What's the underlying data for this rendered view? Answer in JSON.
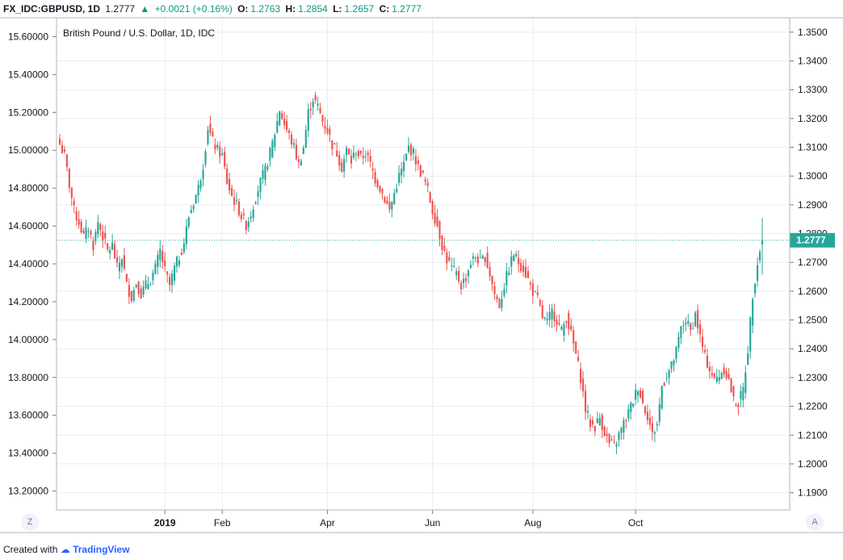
{
  "header": {
    "symbol": "FX_IDC:GBPUSD, 1D",
    "last": "1.2777",
    "change": "+0.0021 (+0.16%)",
    "o_label": "O:",
    "o": "1.2763",
    "h_label": "H:",
    "h": "1.2854",
    "l_label": "L:",
    "l": "1.2657",
    "c_label": "C:",
    "c": "1.2777"
  },
  "footer": {
    "created_with": "Created with",
    "brand": "TradingView"
  },
  "buttons": {
    "left": "Z",
    "right": "A"
  },
  "colors": {
    "up": "#26a69a",
    "down": "#ef5350",
    "price_line": "#26a69a"
  },
  "chart_data": {
    "type": "candlestick",
    "title": "British Pound / U.S. Dollar, 1D, IDC",
    "y_right": {
      "range": [
        1.184,
        1.355
      ],
      "ticks": [
        "1.3500",
        "1.3400",
        "1.3300",
        "1.3200",
        "1.3100",
        "1.3000",
        "1.2900",
        "1.2800",
        "1.2700",
        "1.2600",
        "1.2500",
        "1.2400",
        "1.2300",
        "1.2200",
        "1.2100",
        "1.2000",
        "1.1900"
      ]
    },
    "y_left": {
      "range": [
        13.1,
        15.7
      ],
      "ticks": [
        "15.60000",
        "15.40000",
        "15.20000",
        "15.00000",
        "14.80000",
        "14.60000",
        "14.40000",
        "14.20000",
        "14.00000",
        "13.80000",
        "13.60000",
        "13.40000",
        "13.20000"
      ]
    },
    "x_ticks": [
      "2019",
      "Feb",
      "Apr",
      "Jun",
      "Aug",
      "Oct"
    ],
    "last_price": "1.2777",
    "last_price_value": 1.2777,
    "grid": true,
    "close_path": [
      [
        0,
        1.311
      ],
      [
        2,
        1.307
      ],
      [
        4,
        1.297
      ],
      [
        6,
        1.288
      ],
      [
        8,
        1.284
      ],
      [
        10,
        1.279
      ],
      [
        12,
        1.282
      ],
      [
        14,
        1.276
      ],
      [
        16,
        1.284
      ],
      [
        18,
        1.279
      ],
      [
        20,
        1.274
      ],
      [
        22,
        1.276
      ],
      [
        24,
        1.268
      ],
      [
        26,
        1.272
      ],
      [
        28,
        1.262
      ],
      [
        30,
        1.258
      ],
      [
        32,
        1.263
      ],
      [
        34,
        1.259
      ],
      [
        36,
        1.262
      ],
      [
        38,
        1.264
      ],
      [
        40,
        1.268
      ],
      [
        42,
        1.274
      ],
      [
        44,
        1.267
      ],
      [
        46,
        1.262
      ],
      [
        48,
        1.268
      ],
      [
        50,
        1.272
      ],
      [
        52,
        1.277
      ],
      [
        54,
        1.286
      ],
      [
        56,
        1.291
      ],
      [
        58,
        1.296
      ],
      [
        60,
        1.304
      ],
      [
        62,
        1.317
      ],
      [
        64,
        1.312
      ],
      [
        66,
        1.309
      ],
      [
        68,
        1.307
      ],
      [
        70,
        1.298
      ],
      [
        72,
        1.293
      ],
      [
        74,
        1.29
      ],
      [
        76,
        1.286
      ],
      [
        78,
        1.283
      ],
      [
        80,
        1.287
      ],
      [
        82,
        1.293
      ],
      [
        84,
        1.298
      ],
      [
        86,
        1.302
      ],
      [
        88,
        1.308
      ],
      [
        90,
        1.315
      ],
      [
        92,
        1.323
      ],
      [
        94,
        1.318
      ],
      [
        96,
        1.314
      ],
      [
        98,
        1.31
      ],
      [
        100,
        1.304
      ],
      [
        102,
        1.31
      ],
      [
        104,
        1.322
      ],
      [
        106,
        1.327
      ],
      [
        108,
        1.324
      ],
      [
        110,
        1.319
      ],
      [
        112,
        1.316
      ],
      [
        114,
        1.311
      ],
      [
        116,
        1.308
      ],
      [
        118,
        1.303
      ],
      [
        120,
        1.309
      ],
      [
        122,
        1.305
      ],
      [
        124,
        1.309
      ],
      [
        126,
        1.306
      ],
      [
        128,
        1.308
      ],
      [
        130,
        1.304
      ],
      [
        132,
        1.299
      ],
      [
        134,
        1.296
      ],
      [
        136,
        1.292
      ],
      [
        138,
        1.288
      ],
      [
        140,
        1.294
      ],
      [
        142,
        1.3
      ],
      [
        144,
        1.304
      ],
      [
        146,
        1.31
      ],
      [
        148,
        1.308
      ],
      [
        150,
        1.303
      ],
      [
        152,
        1.3
      ],
      [
        154,
        1.295
      ],
      [
        156,
        1.288
      ],
      [
        158,
        1.283
      ],
      [
        160,
        1.276
      ],
      [
        162,
        1.271
      ],
      [
        164,
        1.268
      ],
      [
        166,
        1.266
      ],
      [
        168,
        1.262
      ],
      [
        170,
        1.265
      ],
      [
        172,
        1.27
      ],
      [
        174,
        1.272
      ],
      [
        176,
        1.27
      ],
      [
        178,
        1.272
      ],
      [
        180,
        1.266
      ],
      [
        182,
        1.259
      ],
      [
        184,
        1.255
      ],
      [
        186,
        1.262
      ],
      [
        188,
        1.268
      ],
      [
        190,
        1.273
      ],
      [
        192,
        1.27
      ],
      [
        194,
        1.268
      ],
      [
        196,
        1.264
      ],
      [
        198,
        1.26
      ],
      [
        200,
        1.257
      ],
      [
        202,
        1.251
      ],
      [
        204,
        1.249
      ],
      [
        206,
        1.253
      ],
      [
        208,
        1.25
      ],
      [
        210,
        1.246
      ],
      [
        212,
        1.251
      ],
      [
        214,
        1.245
      ],
      [
        216,
        1.238
      ],
      [
        218,
        1.23
      ],
      [
        220,
        1.219
      ],
      [
        222,
        1.214
      ],
      [
        224,
        1.213
      ],
      [
        226,
        1.216
      ],
      [
        228,
        1.211
      ],
      [
        230,
        1.207
      ],
      [
        232,
        1.206
      ],
      [
        234,
        1.21
      ],
      [
        236,
        1.214
      ],
      [
        238,
        1.218
      ],
      [
        240,
        1.222
      ],
      [
        242,
        1.227
      ],
      [
        244,
        1.221
      ],
      [
        246,
        1.217
      ],
      [
        248,
        1.21
      ],
      [
        250,
        1.214
      ],
      [
        252,
        1.227
      ],
      [
        254,
        1.231
      ],
      [
        256,
        1.234
      ],
      [
        258,
        1.239
      ],
      [
        260,
        1.247
      ],
      [
        262,
        1.25
      ],
      [
        264,
        1.246
      ],
      [
        266,
        1.252
      ],
      [
        268,
        1.244
      ],
      [
        270,
        1.237
      ],
      [
        272,
        1.233
      ],
      [
        274,
        1.229
      ],
      [
        276,
        1.231
      ],
      [
        278,
        1.233
      ],
      [
        280,
        1.229
      ],
      [
        282,
        1.222
      ],
      [
        284,
        1.221
      ],
      [
        286,
        1.226
      ],
      [
        288,
        1.24
      ],
      [
        290,
        1.259
      ],
      [
        292,
        1.27
      ],
      [
        294,
        1.2777
      ]
    ],
    "n_bars": 295
  },
  "last_ohlc": {
    "o": 1.2763,
    "h": 1.2854,
    "l": 1.2657,
    "c": 1.2777
  }
}
